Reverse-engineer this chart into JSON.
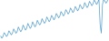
{
  "title": "",
  "line_color": "#5ba3d0",
  "background_color": "#ffffff",
  "figsize": [
    1.2,
    0.45
  ],
  "dpi": 100,
  "ylim": [
    82,
    114
  ],
  "values": [
    86.0,
    84.2,
    85.5,
    88.5,
    87.2,
    85.5,
    86.8,
    90.0,
    88.5,
    86.8,
    88.0,
    91.5,
    89.8,
    88.0,
    89.5,
    93.0,
    91.0,
    89.2,
    90.8,
    94.5,
    92.5,
    90.5,
    92.0,
    95.8,
    93.8,
    91.8,
    93.2,
    97.0,
    95.0,
    93.0,
    94.5,
    98.2,
    96.2,
    94.5,
    96.0,
    99.5,
    97.5,
    95.8,
    97.2,
    100.8,
    99.0,
    97.0,
    98.5,
    102.0,
    100.5,
    98.5,
    100.0,
    103.5,
    102.0,
    100.0,
    101.5,
    105.0,
    103.5,
    101.5,
    103.0,
    106.5,
    105.0,
    103.0,
    104.5,
    107.8,
    106.2,
    104.2,
    105.5,
    109.0,
    107.5,
    105.5,
    107.0,
    110.5,
    108.8,
    107.0,
    108.5,
    112.0,
    110.0,
    108.0,
    109.5,
    113.0,
    111.5,
    109.5,
    111.0,
    114.0,
    112.5,
    110.5,
    112.0,
    115.0,
    95.0,
    88.0,
    110.5,
    114.5,
    113.0,
    111.5,
    113.0,
    116.0
  ]
}
